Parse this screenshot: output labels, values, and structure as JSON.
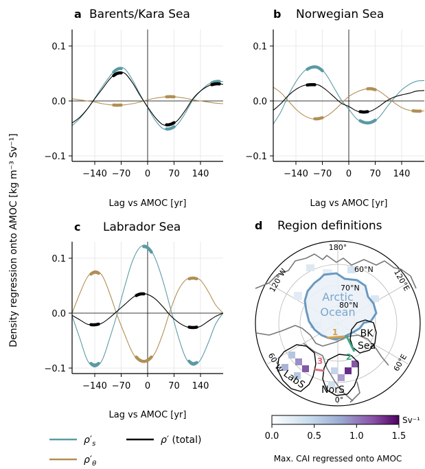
{
  "figure": {
    "shared_ylabel": "Density regression onto AMOC [kg m⁻³ Sv⁻¹]",
    "legend": {
      "rho_s": "ρ′s",
      "rho_theta": "ρ′θ",
      "rho_total": "ρ′ (total)"
    },
    "colors": {
      "rho_s": "#5a9aa4",
      "rho_theta": "#b08f55",
      "rho_total": "#000000"
    }
  },
  "chart_data": [
    {
      "type": "line",
      "panel": "a",
      "title": "Barents/Kara Sea",
      "xlabel": "Lag vs AMOC [yr]",
      "xticks": [
        "−140",
        "−70",
        "0",
        "70",
        "140"
      ],
      "yticks": [
        "−0.1",
        "0.0",
        "0.1"
      ],
      "xlim": [
        -200,
        200
      ],
      "ylim": [
        -0.11,
        0.13
      ],
      "series": [
        {
          "name": "ρ′s",
          "key": "rho_s",
          "x": [
            -200,
            -180,
            -160,
            -140,
            -120,
            -100,
            -80,
            -60,
            -40,
            -20,
            0,
            20,
            40,
            60,
            80,
            100,
            120,
            140,
            160,
            180,
            200
          ],
          "y": [
            -0.045,
            -0.032,
            -0.015,
            0.005,
            0.026,
            0.045,
            0.06,
            0.058,
            0.038,
            0.012,
            -0.012,
            -0.035,
            -0.05,
            -0.052,
            -0.042,
            -0.022,
            0.002,
            0.018,
            0.03,
            0.036,
            0.035
          ]
        },
        {
          "name": "ρ′θ",
          "key": "rho_theta",
          "x": [
            -200,
            -180,
            -160,
            -140,
            -120,
            -100,
            -80,
            -60,
            -40,
            -20,
            0,
            20,
            40,
            60,
            80,
            100,
            120,
            140,
            160,
            180,
            200
          ],
          "y": [
            0.004,
            0.002,
            0.0,
            -0.002,
            -0.005,
            -0.007,
            -0.008,
            -0.007,
            -0.005,
            -0.002,
            0.002,
            0.005,
            0.007,
            0.008,
            0.007,
            0.005,
            0.002,
            0.0,
            -0.002,
            -0.004,
            -0.005
          ]
        },
        {
          "name": "ρ′ (total)",
          "key": "rho_total",
          "x": [
            -200,
            -180,
            -160,
            -140,
            -120,
            -100,
            -80,
            -60,
            -40,
            -20,
            0,
            20,
            40,
            60,
            80,
            100,
            120,
            140,
            160,
            180,
            200
          ],
          "y": [
            -0.04,
            -0.03,
            -0.015,
            0.004,
            0.022,
            0.04,
            0.052,
            0.05,
            0.033,
            0.01,
            -0.011,
            -0.03,
            -0.043,
            -0.044,
            -0.035,
            -0.017,
            0.004,
            0.018,
            0.027,
            0.032,
            0.03
          ]
        }
      ]
    },
    {
      "type": "line",
      "panel": "b",
      "title": "Norwegian Sea",
      "xlabel": "Lag vs AMOC [yr]",
      "xticks": [
        "−140",
        "−70",
        "0",
        "70",
        "140"
      ],
      "yticks": [
        "−0.1",
        "0.0",
        "0.1"
      ],
      "xlim": [
        -200,
        200
      ],
      "ylim": [
        -0.11,
        0.13
      ],
      "series": [
        {
          "name": "ρ′s",
          "key": "rho_s",
          "x": [
            -200,
            -180,
            -160,
            -140,
            -120,
            -100,
            -80,
            -60,
            -40,
            -20,
            0,
            20,
            40,
            60,
            80,
            100,
            120,
            140,
            160,
            180,
            200
          ],
          "y": [
            -0.042,
            -0.02,
            0.01,
            0.035,
            0.053,
            0.062,
            0.062,
            0.048,
            0.025,
            0.002,
            -0.015,
            -0.032,
            -0.04,
            -0.04,
            -0.03,
            -0.012,
            0.005,
            0.02,
            0.03,
            0.036,
            0.037
          ]
        },
        {
          "name": "ρ′θ",
          "key": "rho_theta",
          "x": [
            -200,
            -180,
            -160,
            -140,
            -120,
            -100,
            -80,
            -60,
            -40,
            -20,
            0,
            20,
            40,
            60,
            80,
            100,
            120,
            140,
            160,
            180,
            200
          ],
          "y": [
            0.025,
            0.015,
            0.0,
            -0.015,
            -0.026,
            -0.032,
            -0.033,
            -0.028,
            -0.018,
            -0.005,
            0.008,
            0.016,
            0.021,
            0.023,
            0.018,
            0.008,
            -0.003,
            -0.012,
            -0.017,
            -0.019,
            -0.018
          ]
        },
        {
          "name": "ρ′ (total)",
          "key": "rho_total",
          "x": [
            -200,
            -180,
            -160,
            -140,
            -120,
            -100,
            -80,
            -60,
            -40,
            -20,
            0,
            20,
            40,
            60,
            80,
            100,
            120,
            140,
            160,
            180,
            200
          ],
          "y": [
            -0.017,
            -0.005,
            0.01,
            0.021,
            0.028,
            0.03,
            0.029,
            0.02,
            0.008,
            -0.004,
            -0.01,
            -0.018,
            -0.021,
            -0.018,
            -0.01,
            0.0,
            0.007,
            0.011,
            0.014,
            0.018,
            0.019
          ]
        }
      ]
    },
    {
      "type": "line",
      "panel": "c",
      "title": "Labrador Sea",
      "xlabel": "Lag vs AMOC [yr]",
      "xticks": [
        "−140",
        "−70",
        "0",
        "70",
        "140"
      ],
      "yticks": [
        "−0.1",
        "0.0",
        "0.1"
      ],
      "xlim": [
        -200,
        200
      ],
      "ylim": [
        -0.11,
        0.13
      ],
      "series": [
        {
          "name": "ρ′s",
          "key": "rho_s",
          "x": [
            -200,
            -180,
            -160,
            -140,
            -120,
            -100,
            -80,
            -60,
            -40,
            -20,
            0,
            20,
            40,
            60,
            80,
            100,
            120,
            140,
            160,
            180,
            200
          ],
          "y": [
            -0.005,
            -0.045,
            -0.085,
            -0.098,
            -0.085,
            -0.045,
            0.0,
            0.05,
            0.095,
            0.12,
            0.122,
            0.1,
            0.06,
            0.01,
            -0.04,
            -0.08,
            -0.095,
            -0.085,
            -0.055,
            -0.02,
            0.0
          ]
        },
        {
          "name": "ρ′θ",
          "key": "rho_theta",
          "x": [
            -200,
            -180,
            -160,
            -140,
            -120,
            -100,
            -80,
            -60,
            -40,
            -20,
            0,
            20,
            40,
            60,
            80,
            100,
            120,
            140,
            160,
            180,
            200
          ],
          "y": [
            0.0,
            0.035,
            0.065,
            0.077,
            0.068,
            0.035,
            -0.005,
            -0.04,
            -0.072,
            -0.088,
            -0.088,
            -0.072,
            -0.038,
            0.005,
            0.04,
            0.06,
            0.065,
            0.06,
            0.04,
            0.015,
            0.0
          ]
        },
        {
          "name": "ρ′ (total)",
          "key": "rho_total",
          "x": [
            -200,
            -180,
            -160,
            -140,
            -120,
            -100,
            -80,
            -60,
            -40,
            -20,
            0,
            20,
            40,
            60,
            80,
            100,
            120,
            140,
            160,
            180,
            200
          ],
          "y": [
            -0.004,
            -0.012,
            -0.02,
            -0.022,
            -0.018,
            -0.008,
            0.004,
            0.016,
            0.028,
            0.036,
            0.034,
            0.026,
            0.012,
            -0.004,
            -0.016,
            -0.024,
            -0.027,
            -0.024,
            -0.015,
            -0.006,
            0.0
          ]
        }
      ]
    },
    {
      "type": "heatmap",
      "panel": "d",
      "title": "Region definitions",
      "map_labels": {
        "lat_180": "180°",
        "lat_60n": "60°N",
        "lat_70n": "70°N",
        "lat_80n": "80°N",
        "lon_120w": "120°W",
        "lon_120e": "120°E",
        "lon_60w": "60°W",
        "lon_60e": "60°E",
        "lon_0": "0°",
        "arctic_1": "Arctic",
        "arctic_2": "Ocean",
        "bk_1": "BK",
        "bk_2": "Sea",
        "labs": "LabS",
        "nors": "NorS",
        "gate_1": "1",
        "gate_2": "2",
        "gate_3": "3"
      },
      "colorbar": {
        "label": "Max. CAI regressed onto AMOC",
        "unit": "Sv⁻¹",
        "ticks": [
          "0.0",
          "0.5",
          "1.0",
          "1.5"
        ],
        "range": [
          0,
          1.5
        ]
      },
      "gate_colors": {
        "gate_1": "#d4a14a",
        "gate_2": "#3aaa88",
        "gate_3": "#e06a7a"
      }
    }
  ]
}
